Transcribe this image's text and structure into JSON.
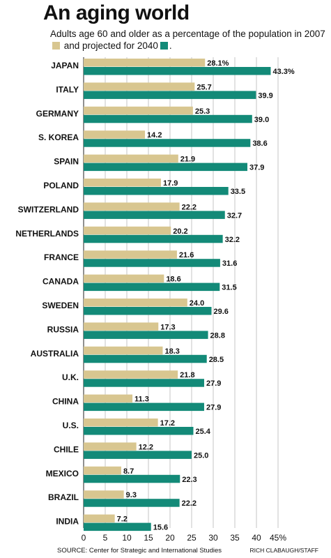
{
  "title": "An aging world",
  "subtitle": {
    "part1": "Adults age 60 and older as a percentage of the population in 2007",
    "part2": "and projected for 2040",
    "part3": "."
  },
  "colors": {
    "y2007": "#d8c690",
    "y2040": "#138a78"
  },
  "footer": {
    "source": "SOURCE: Center for Strategic and International Studies",
    "credit": "RICH CLABAUGH/STAFF"
  },
  "chart_data": {
    "type": "bar",
    "orientation": "horizontal",
    "categories": [
      "JAPAN",
      "ITALY",
      "GERMANY",
      "S. KOREA",
      "SPAIN",
      "POLAND",
      "SWITZERLAND",
      "NETHERLANDS",
      "FRANCE",
      "CANADA",
      "SWEDEN",
      "RUSSIA",
      "AUSTRALIA",
      "U.K.",
      "CHINA",
      "U.S.",
      "CHILE",
      "MEXICO",
      "BRAZIL",
      "INDIA"
    ],
    "series": [
      {
        "values": [
          28.1,
          25.7,
          25.3,
          14.2,
          21.9,
          17.9,
          22.2,
          20.2,
          21.6,
          18.6,
          24.0,
          17.3,
          18.3,
          21.8,
          11.3,
          17.2,
          12.2,
          8.7,
          9.3,
          7.2
        ],
        "labels": [
          "28.1%",
          "25.7",
          "25.3",
          "14.2",
          "21.9",
          "17.9",
          "22.2",
          "20.2",
          "21.6",
          "18.6",
          "24.0",
          "17.3",
          "18.3",
          "21.8",
          "11.3",
          "17.2",
          "12.2",
          "8.7",
          "9.3",
          "7.2"
        ]
      },
      {
        "values": [
          43.3,
          39.9,
          39.0,
          38.6,
          37.9,
          33.5,
          32.7,
          32.2,
          31.6,
          31.5,
          29.6,
          28.8,
          28.5,
          27.9,
          27.9,
          25.4,
          25.0,
          22.3,
          22.2,
          15.6
        ],
        "labels": [
          "43.3%",
          "39.9",
          "39.0",
          "38.6",
          "37.9",
          "33.5",
          "32.7",
          "32.2",
          "31.6",
          "31.5",
          "29.6",
          "28.8",
          "28.5",
          "27.9",
          "27.9",
          "25.4",
          "25.0",
          "22.3",
          "22.2",
          "15.6"
        ]
      }
    ],
    "xlim": [
      0,
      45
    ],
    "xticks": [
      "0",
      "5",
      "10",
      "15",
      "20",
      "25",
      "30",
      "35",
      "40",
      "45%"
    ],
    "grid": true
  }
}
